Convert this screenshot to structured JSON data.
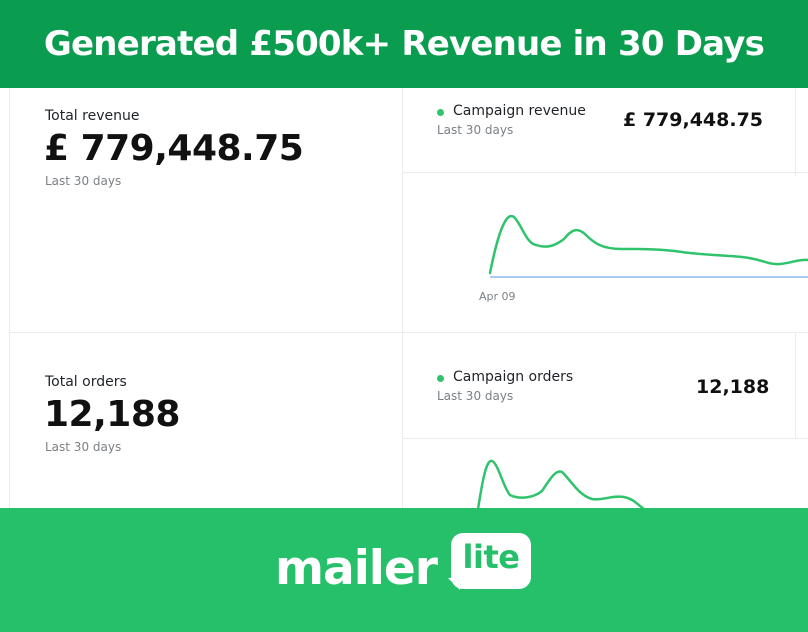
{
  "banner": {
    "title": "Generated £500k+ Revenue in 30 Days"
  },
  "revenue": {
    "total_label": "Total revenue",
    "total_value": "£ 779,448.75",
    "total_period": "Last 30 days",
    "campaign_label": "Campaign revenue",
    "campaign_period": "Last 30 days",
    "campaign_value": "£ 779,448.75",
    "axis_label": "Apr 09"
  },
  "orders": {
    "total_label": "Total orders",
    "total_value": "12,188",
    "total_period": "Last 30 days",
    "campaign_label": "Campaign orders",
    "campaign_period": "Last 30 days",
    "campaign_value": "12,188"
  },
  "colors": {
    "banner_bg": "#0a9d4f",
    "footer_bg": "#27c06a",
    "series_green": "#2fc36c",
    "baseline_blue": "#8fb9f2"
  },
  "logo": {
    "word": "mailer",
    "badge": "lite"
  }
}
